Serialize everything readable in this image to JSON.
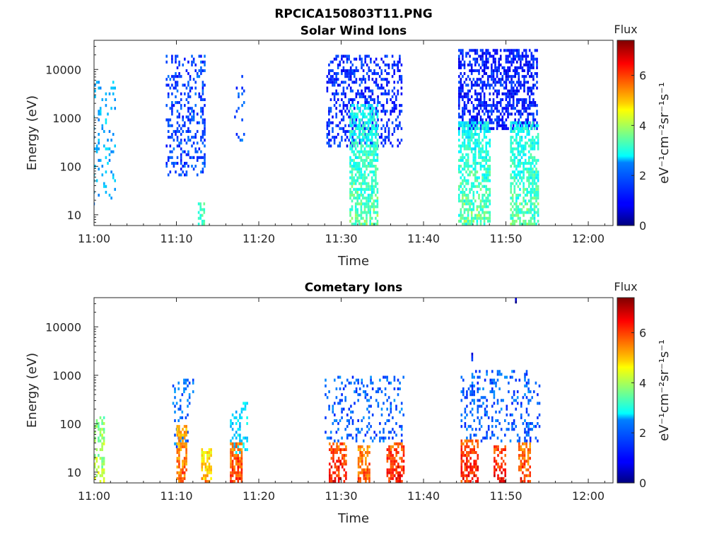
{
  "figure": {
    "filename_title": "RPCICA150803T11.PNG"
  },
  "colorbar": {
    "label_top": "Flux",
    "unit_label": "eV⁻¹cm⁻²sr⁻¹s⁻¹",
    "range": [
      0,
      7.4
    ],
    "ticks": [
      "0",
      "2",
      "4",
      "6"
    ],
    "colormap": "jet"
  },
  "chart_data": [
    {
      "type": "heatmap",
      "title": "Solar Wind Ions",
      "xlabel": "Time",
      "ylabel": "Energy (eV)",
      "yscale": "log",
      "ylim": [
        6,
        40000
      ],
      "xlim": [
        "11:00",
        "12:03"
      ],
      "xticks": [
        "11:00",
        "11:10",
        "11:20",
        "11:30",
        "11:40",
        "11:50",
        "12:00"
      ],
      "yticks": [
        "10",
        "100",
        "1000",
        "10000"
      ],
      "time_unit_minutes_from": "11:00",
      "bursts": [
        {
          "t": [
            -0.2,
            2.5
          ],
          "e": [
            15,
            6000
          ],
          "flux": 2.2,
          "density": 0.16
        },
        {
          "t": [
            8.7,
            13.4
          ],
          "e": [
            60,
            20000
          ],
          "flux": 1.4,
          "density": 0.28
        },
        {
          "t": [
            12.6,
            13.4
          ],
          "e": [
            6,
            18
          ],
          "flux": 3.2,
          "density": 0.6
        },
        {
          "t": [
            17.0,
            18.3
          ],
          "e": [
            280,
            9000
          ],
          "flux": 1.5,
          "density": 0.14
        },
        {
          "t": [
            28.2,
            37.4
          ],
          "e": [
            250,
            20000
          ],
          "flux": 1.2,
          "density": 0.35
        },
        {
          "t": [
            31.0,
            34.5
          ],
          "e": [
            6,
            2000
          ],
          "flux": 2.8,
          "density": 0.65,
          "low_boost": true
        },
        {
          "t": [
            44.2,
            53.8
          ],
          "e": [
            600,
            25000
          ],
          "flux": 1.1,
          "density": 0.55
        },
        {
          "t": [
            44.2,
            48.0
          ],
          "e": [
            6,
            800
          ],
          "flux": 2.8,
          "density": 0.6,
          "low_boost": true
        },
        {
          "t": [
            50.5,
            53.8
          ],
          "e": [
            6,
            800
          ],
          "flux": 2.8,
          "density": 0.6,
          "low_boost": true
        }
      ]
    },
    {
      "type": "heatmap",
      "title": "Cometary Ions",
      "xlabel": "Time",
      "ylabel": "Energy (eV)",
      "yscale": "log",
      "ylim": [
        6,
        40000
      ],
      "xlim": [
        "11:00",
        "12:03"
      ],
      "xticks": [
        "11:00",
        "11:10",
        "11:20",
        "11:30",
        "11:40",
        "11:50",
        "12:00"
      ],
      "yticks": [
        "10",
        "100",
        "1000",
        "10000"
      ],
      "time_unit_minutes_from": "11:00",
      "bursts": [
        {
          "t": [
            0.0,
            1.2
          ],
          "e": [
            6,
            150
          ],
          "flux": 3.6,
          "density": 0.4,
          "low_boost": true
        },
        {
          "t": [
            9.5,
            12.0
          ],
          "e": [
            30,
            800
          ],
          "flux": 1.7,
          "density": 0.25
        },
        {
          "t": [
            10.0,
            11.3
          ],
          "e": [
            6,
            100
          ],
          "flux": 5.2,
          "density": 0.7,
          "low_boost": true
        },
        {
          "t": [
            13.0,
            14.2
          ],
          "e": [
            6,
            30
          ],
          "flux": 4.6,
          "density": 0.6,
          "low_boost": true
        },
        {
          "t": [
            16.5,
            18.5
          ],
          "e": [
            25,
            300
          ],
          "flux": 2.5,
          "density": 0.3
        },
        {
          "t": [
            16.5,
            18.0
          ],
          "e": [
            6,
            40
          ],
          "flux": 5.5,
          "density": 0.7,
          "low_boost": true
        },
        {
          "t": [
            28.0,
            37.5
          ],
          "e": [
            40,
            1000
          ],
          "flux": 1.6,
          "density": 0.22
        },
        {
          "t": [
            28.5,
            30.5
          ],
          "e": [
            6,
            40
          ],
          "flux": 5.8,
          "density": 0.6,
          "low_boost": true
        },
        {
          "t": [
            32.0,
            33.5
          ],
          "e": [
            6,
            35
          ],
          "flux": 5.4,
          "density": 0.6,
          "low_boost": true
        },
        {
          "t": [
            35.5,
            37.5
          ],
          "e": [
            6,
            40
          ],
          "flux": 5.8,
          "density": 0.65,
          "low_boost": true
        },
        {
          "t": [
            44.5,
            54.0
          ],
          "e": [
            40,
            1200
          ],
          "flux": 1.6,
          "density": 0.22
        },
        {
          "t": [
            44.5,
            46.5
          ],
          "e": [
            6,
            50
          ],
          "flux": 5.8,
          "density": 0.65,
          "low_boost": true
        },
        {
          "t": [
            48.5,
            50.0
          ],
          "e": [
            6,
            35
          ],
          "flux": 5.9,
          "density": 0.6,
          "low_boost": true
        },
        {
          "t": [
            51.5,
            53.0
          ],
          "e": [
            6,
            40
          ],
          "flux": 5.5,
          "density": 0.6,
          "low_boost": true
        },
        {
          "t": [
            45.8,
            46.0
          ],
          "e": [
            2000,
            2800
          ],
          "flux": 1.0,
          "density": 1.0
        },
        {
          "t": [
            51.1,
            51.3
          ],
          "e": [
            30000,
            38000
          ],
          "flux": 0.5,
          "density": 1.0
        }
      ]
    }
  ]
}
